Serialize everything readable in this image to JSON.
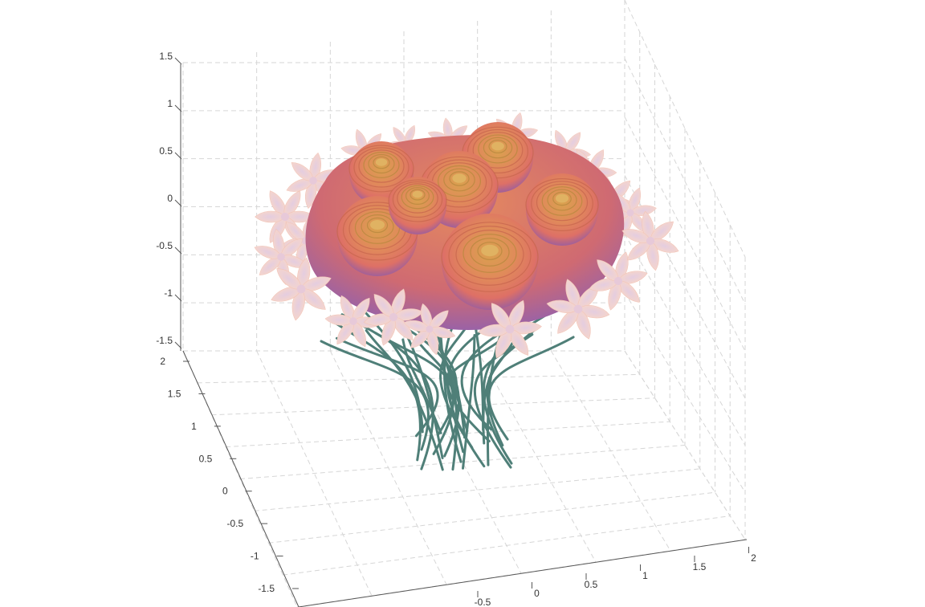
{
  "chart_data": {
    "type": "surface3d",
    "title": "",
    "xlabel": "",
    "ylabel": "",
    "zlabel": "",
    "xlim": [
      -2,
      2
    ],
    "ylim": [
      -2,
      2
    ],
    "zlim": [
      -1.5,
      1.5
    ],
    "x_ticks": [
      "-0.5",
      "0",
      "0.5",
      "1",
      "1.5",
      "2"
    ],
    "y_ticks": [
      "2",
      "1.5",
      "1",
      "0.5",
      "0",
      "-0.5",
      "-1",
      "-1.5"
    ],
    "z_ticks": [
      "1.5",
      "1",
      "0.5",
      "0",
      "-0.5",
      "-1",
      "-1.5"
    ],
    "grid": true,
    "series": [
      {
        "kind": "rose",
        "count": 7
      },
      {
        "kind": "lily",
        "count": 20
      },
      {
        "kind": "stem",
        "count": 28
      }
    ],
    "colors": {
      "rose_light": "#d9a24e",
      "rose_mid": "#e07a63",
      "rose_dark": "#a0609a",
      "lily": "#f6cfc6",
      "lily_center": "#e7c9d9",
      "stem": "#4f7f78",
      "grid": "#d6d6d6",
      "axis": "#555555"
    }
  }
}
